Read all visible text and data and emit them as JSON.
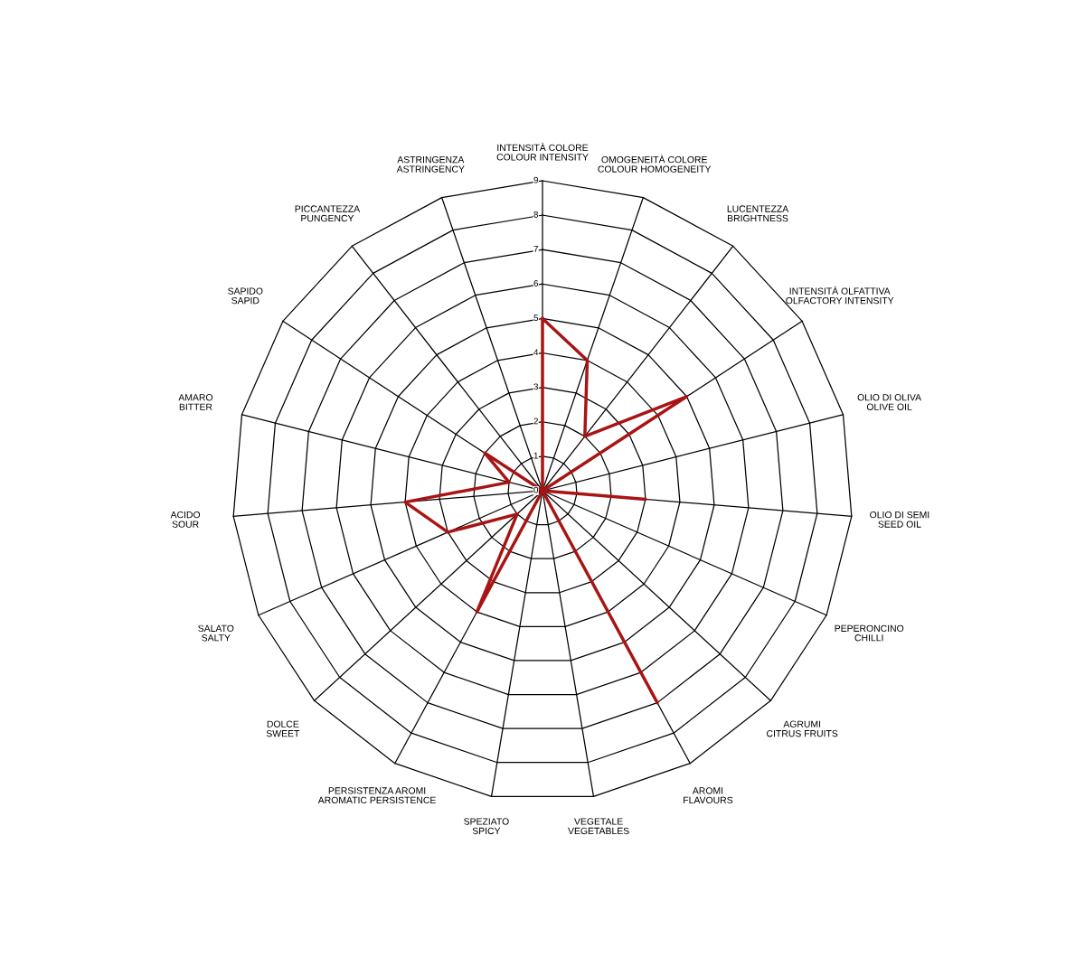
{
  "chart_data": {
    "type": "radar",
    "categories": [
      "INTENSITÀ COLORE\nCOLOUR INTENSITY",
      "OMOGENEITÀ COLORE\nCOLOUR HOMOGENEITY",
      "LUCENTEZZA\nBRIGHTNESS",
      "INTENSITÀ OLFATTIVA\nOLFACTORY INTENSITY",
      "OLIO DI OLIVA\nOLIVE OIL",
      "OLIO DI SEMI\nSEED OIL",
      "PEPERONCINO\nCHILLI",
      "AGRUMI\nCITRUS FRUITS",
      "AROMI\nFLAVOURS",
      "VEGETALE\nVEGETABLES",
      "SPEZIATO\nSPICY",
      "PERSISTENZA AROMI\nAROMATIC PERSISTENCE",
      "DOLCE\nSWEET",
      "SALATO\nSALTY",
      "ACIDO\nSOUR",
      "AMARO\nBITTER",
      "SAPIDO\nSAPID",
      "PICCANTEZZA\nPUNGENCY",
      "ASTRINGENZA\nASTRINGENCY"
    ],
    "series": [
      {
        "color": "#a81414",
        "values": [
          5,
          4,
          2,
          5,
          0,
          3,
          0,
          0,
          7,
          0,
          0,
          4,
          1,
          3,
          4,
          1,
          2,
          0,
          0
        ]
      }
    ],
    "ylim": [
      0,
      9
    ],
    "yticks": [
      0,
      1,
      2,
      3,
      4,
      5,
      6,
      7,
      8,
      9
    ],
    "grid": true,
    "marker": "none",
    "line_style": "solid"
  }
}
